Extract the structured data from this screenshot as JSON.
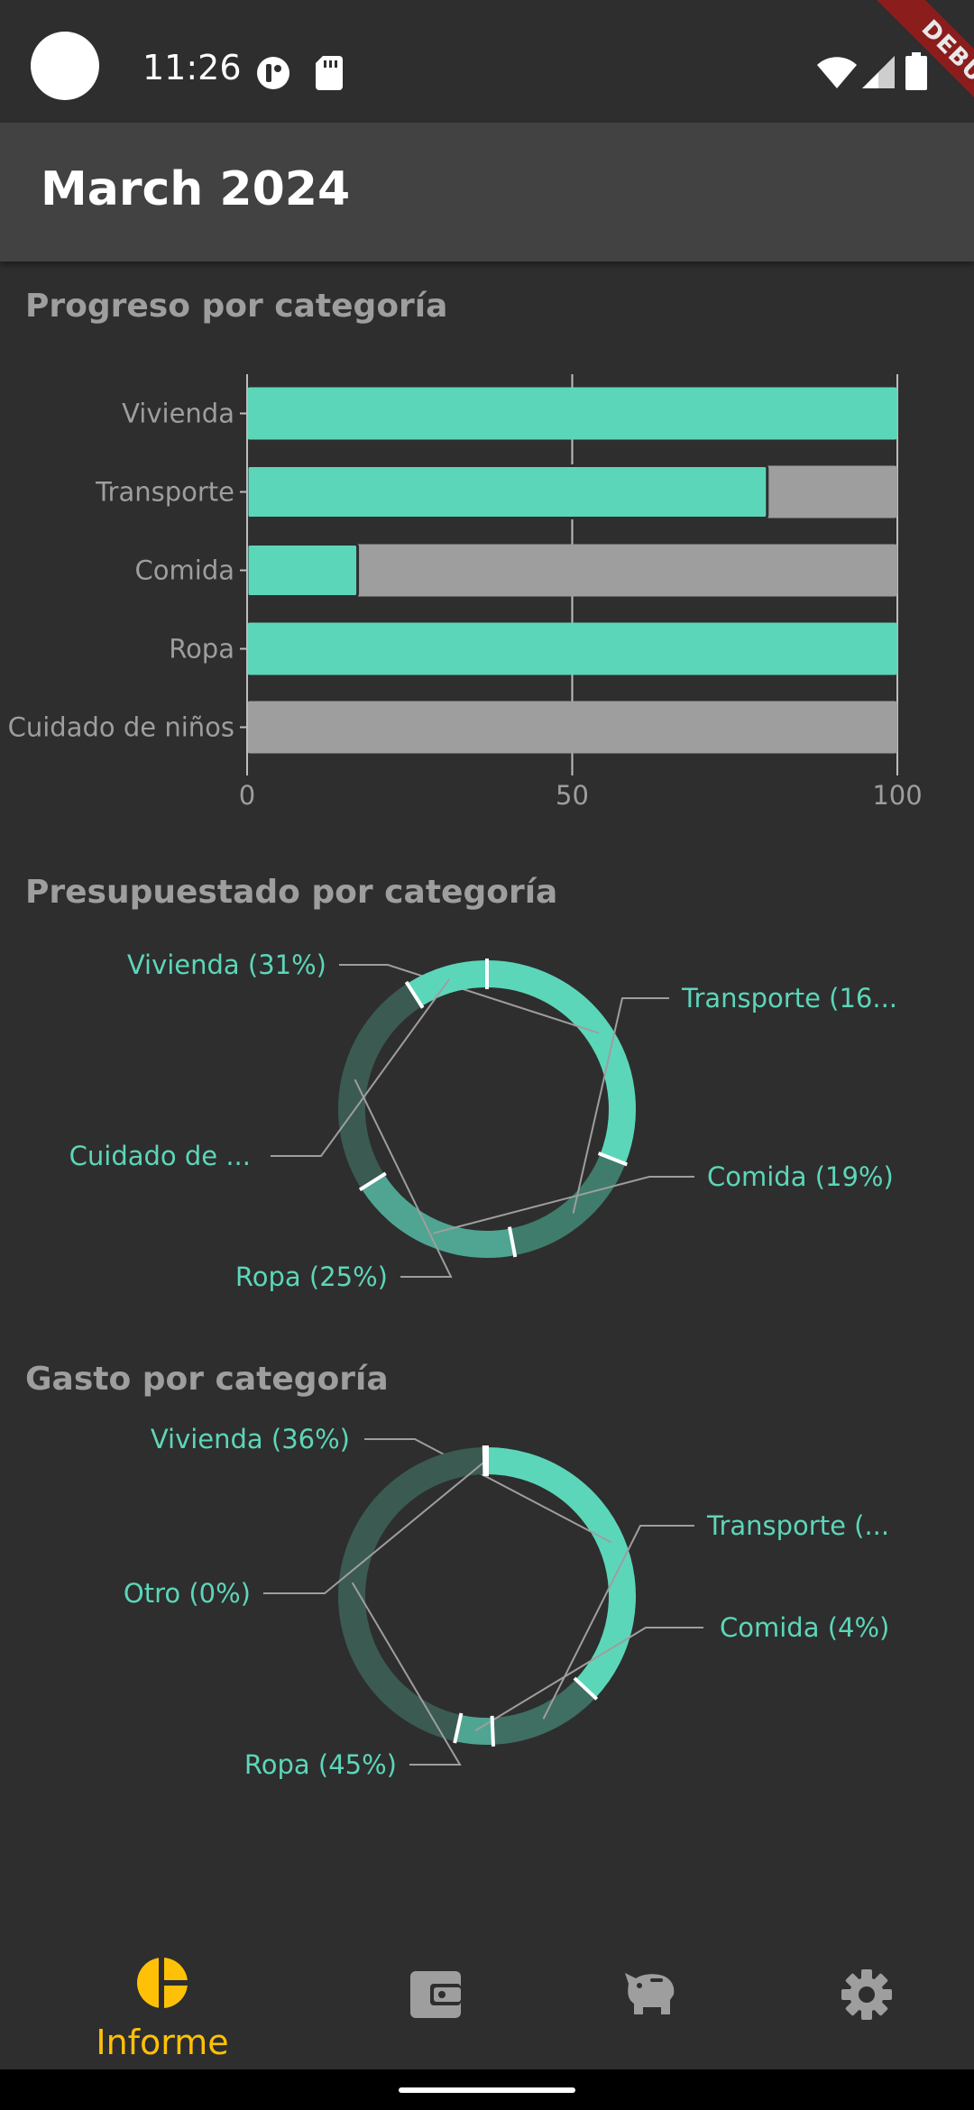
{
  "status_bar": {
    "time": "11:26",
    "debug_label": "DEBUG"
  },
  "app_bar": {
    "title": "March 2024"
  },
  "sections": {
    "progress": "Progreso por categoría",
    "budgeted": "Presupuestado por categoría",
    "spent": "Gasto por categoría"
  },
  "colors": {
    "accent": "#5cd6b9",
    "track": "#9e9e9e",
    "nav_active": "#ffc107",
    "background": "#2e2e2e",
    "app_bar": "#424242"
  },
  "chart_data": [
    {
      "type": "bar",
      "orientation": "horizontal",
      "categories": [
        "Vivienda",
        "Transporte",
        "Comida",
        "Ropa",
        "Cuidado de niños"
      ],
      "values": [
        100,
        80,
        17,
        100,
        0
      ],
      "xlim": [
        0,
        100
      ],
      "xticks": [
        "0",
        "50",
        "100"
      ],
      "grid": true
    },
    {
      "type": "pie",
      "style": "donut",
      "slices": [
        {
          "label": "Vivienda (31%)",
          "value": 31
        },
        {
          "label": "Transporte (16...",
          "value": 16
        },
        {
          "label": "Comida (19%)",
          "value": 19
        },
        {
          "label": "Ropa (25%)",
          "value": 25
        },
        {
          "label": "Cuidado de ...",
          "value": 9
        }
      ]
    },
    {
      "type": "pie",
      "style": "donut",
      "slices": [
        {
          "label": "Vivienda (36%)",
          "value": 36
        },
        {
          "label": "Transporte (...",
          "value": 12
        },
        {
          "label": "Comida (4%)",
          "value": 4
        },
        {
          "label": "Ropa (45%)",
          "value": 45
        },
        {
          "label": "Otro (0%)",
          "value": 0.3
        }
      ]
    }
  ],
  "bottom_nav": {
    "items": [
      {
        "label": "Informe",
        "icon": "pie-chart-icon",
        "active": true
      },
      {
        "label": "",
        "icon": "wallet-icon",
        "active": false
      },
      {
        "label": "",
        "icon": "piggy-bank-icon",
        "active": false
      },
      {
        "label": "",
        "icon": "gear-icon",
        "active": false
      }
    ]
  }
}
